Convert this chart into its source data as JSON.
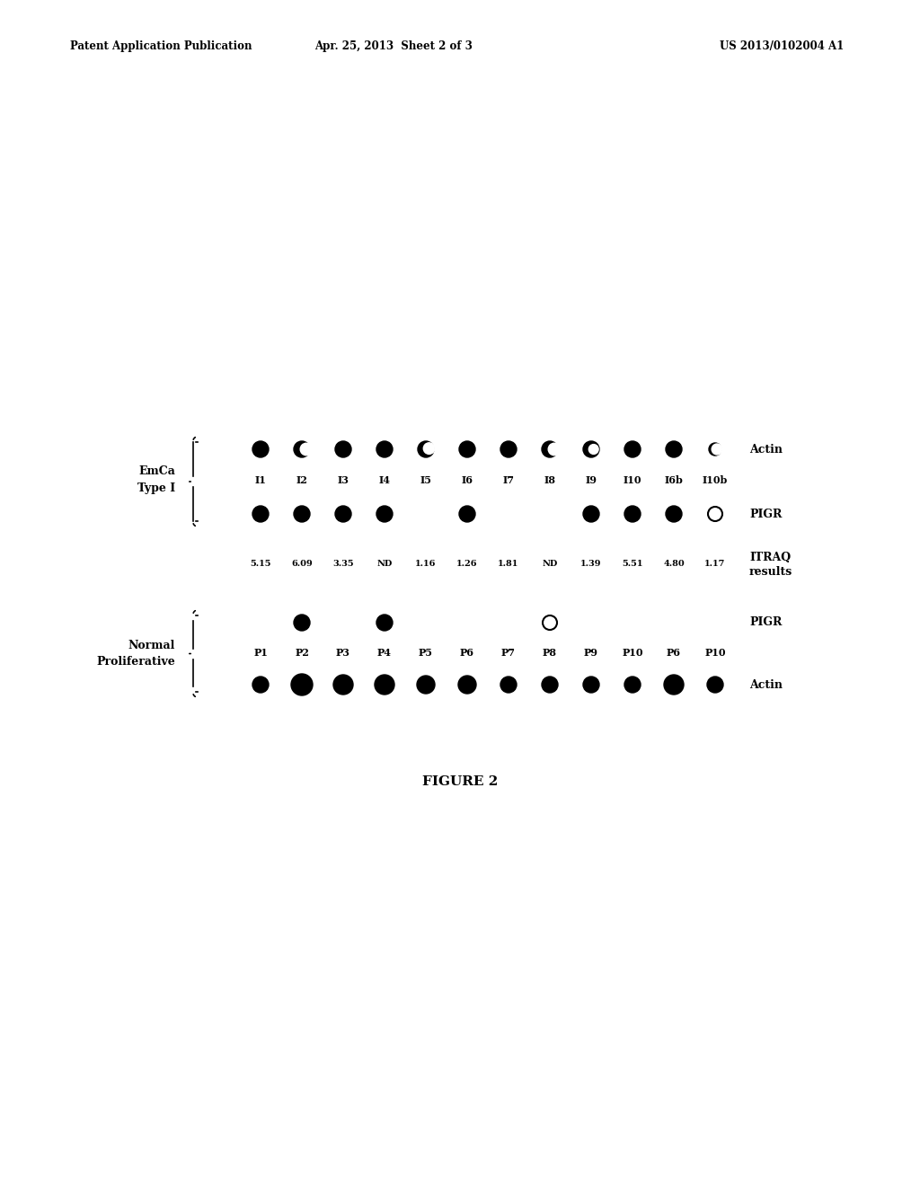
{
  "header_left": "Patent Application Publication",
  "header_mid": "Apr. 25, 2013  Sheet 2 of 3",
  "header_right": "US 2013/0102004 A1",
  "emca_label_line1": "EmCa",
  "emca_label_line2": "Type I",
  "emca_samples": [
    "I1",
    "I2",
    "I3",
    "I4",
    "I5",
    "I6",
    "I7",
    "I8",
    "I9",
    "I10",
    "I6b",
    "I10b"
  ],
  "actin_row1_dots": [
    {
      "r": 9,
      "type": "full"
    },
    {
      "r": 9,
      "type": "crescent"
    },
    {
      "r": 9,
      "type": "full"
    },
    {
      "r": 9,
      "type": "full"
    },
    {
      "r": 9,
      "type": "crescent2"
    },
    {
      "r": 9,
      "type": "full"
    },
    {
      "r": 9,
      "type": "full"
    },
    {
      "r": 9,
      "type": "crescent"
    },
    {
      "r": 9,
      "type": "partial"
    },
    {
      "r": 9,
      "type": "full"
    },
    {
      "r": 9,
      "type": "full"
    },
    {
      "r": 7,
      "type": "crescent3"
    }
  ],
  "pigr_row1_dots": [
    {
      "r": 9,
      "type": "full"
    },
    {
      "r": 9,
      "type": "full"
    },
    {
      "r": 9,
      "type": "full"
    },
    {
      "r": 9,
      "type": "full"
    },
    {
      "r": 0,
      "type": "none"
    },
    {
      "r": 9,
      "type": "full"
    },
    {
      "r": 0,
      "type": "none"
    },
    {
      "r": 0,
      "type": "none"
    },
    {
      "r": 9,
      "type": "full"
    },
    {
      "r": 9,
      "type": "full"
    },
    {
      "r": 9,
      "type": "full"
    },
    {
      "r": 8,
      "type": "open"
    }
  ],
  "itraq_values": [
    "5.15",
    "6.09",
    "3.35",
    "ND",
    "1.16",
    "1.26",
    "1.81",
    "ND",
    "1.39",
    "5.51",
    "4.80",
    "1.17"
  ],
  "itraq_label_line1": "ITRAQ",
  "itraq_label_line2": "results",
  "normal_label_line1": "Normal",
  "normal_label_line2": "Proliferative",
  "normal_samples": [
    "P1",
    "P2",
    "P3",
    "P4",
    "P5",
    "P6",
    "P7",
    "P8",
    "P9",
    "P10",
    "P6",
    "P10"
  ],
  "pigr_row2_dots": [
    {
      "r": 0,
      "type": "none"
    },
    {
      "r": 9,
      "type": "full"
    },
    {
      "r": 0,
      "type": "none"
    },
    {
      "r": 9,
      "type": "full"
    },
    {
      "r": 0,
      "type": "none"
    },
    {
      "r": 0,
      "type": "none"
    },
    {
      "r": 0,
      "type": "none"
    },
    {
      "r": 8,
      "type": "open"
    },
    {
      "r": 0,
      "type": "none"
    },
    {
      "r": 0,
      "type": "none"
    },
    {
      "r": 0,
      "type": "none"
    },
    {
      "r": 0,
      "type": "none"
    }
  ],
  "actin_row2_dots": [
    {
      "r": 9,
      "type": "full"
    },
    {
      "r": 12,
      "type": "full"
    },
    {
      "r": 11,
      "type": "full"
    },
    {
      "r": 11,
      "type": "full"
    },
    {
      "r": 10,
      "type": "full"
    },
    {
      "r": 10,
      "type": "full"
    },
    {
      "r": 9,
      "type": "full"
    },
    {
      "r": 9,
      "type": "full"
    },
    {
      "r": 9,
      "type": "full"
    },
    {
      "r": 9,
      "type": "full"
    },
    {
      "r": 11,
      "type": "full"
    },
    {
      "r": 9,
      "type": "full"
    }
  ],
  "figure_caption": "FIGURE 2",
  "bg_color": "#ffffff"
}
